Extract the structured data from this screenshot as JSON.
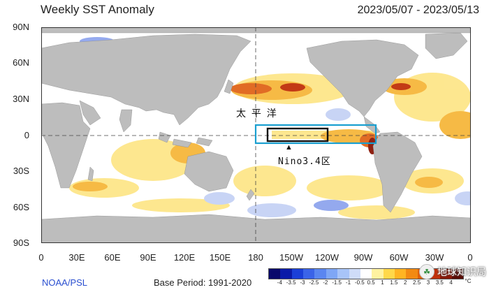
{
  "title": "Weekly SST Anomaly",
  "date_range": "2023/05/07 - 2023/05/13",
  "lat_labels": [
    "90N",
    "60N",
    "30N",
    "0",
    "30S",
    "60S",
    "90S"
  ],
  "lon_labels": [
    "0",
    "30E",
    "60E",
    "90E",
    "120E",
    "150E",
    "180",
    "150W",
    "120W",
    "90W",
    "60W",
    "30W",
    "0"
  ],
  "annotations": {
    "pacific_label": "太 平 洋",
    "nino_label": "Nino3.4区",
    "nino_box_color": "#111111",
    "nino_outer_box_color": "#1a9fd0",
    "marker_glyph": "▲"
  },
  "footer": {
    "source": "NOAA/PSL",
    "base_period": "Base Period: 1991-2020"
  },
  "colorbar": {
    "labels": [
      "-4",
      "-3.5",
      "-3",
      "-2.5",
      "-2",
      "-1.5",
      "-1",
      "-0.5",
      "0.5",
      "1",
      "1.5",
      "2",
      "2.5",
      "3",
      "3.5",
      "4"
    ],
    "unit": "°C",
    "colors": [
      "#08086b",
      "#0a1aa8",
      "#1a3fd8",
      "#3a63e8",
      "#5a86f0",
      "#7ea6f5",
      "#a8c4f8",
      "#cfdcf8",
      "#ffffff",
      "#fff2a0",
      "#ffd84a",
      "#ffb422",
      "#f28a12",
      "#e0600a",
      "#c0300a",
      "#8a1606",
      "#5a0a04"
    ]
  },
  "watermark": "地球知识局",
  "colors": {
    "land": "#bdbdbd",
    "ocean_neutral": "#ffffff",
    "warm_light": "#fde68a",
    "warm_mid": "#f6b73c",
    "warm_strong": "#e0651a",
    "warm_extreme": "#8a1606",
    "cool_light": "#c6d2f5",
    "cool_mid": "#8fa5ee"
  }
}
